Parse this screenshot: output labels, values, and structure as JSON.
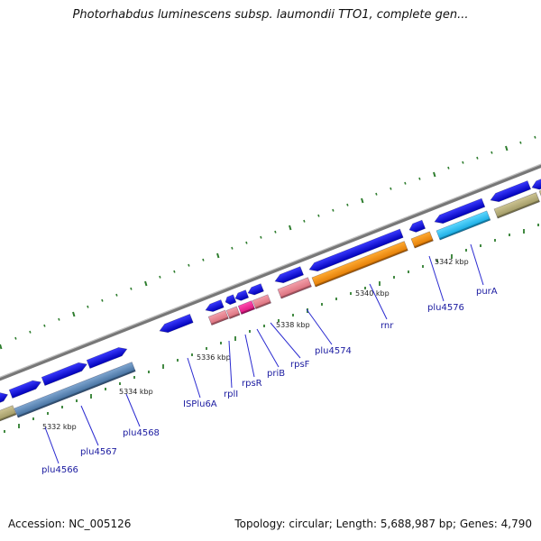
{
  "title": "Photorhabdus luminescens subsp. laumondii TTO1, complete gen...",
  "footer": {
    "accession": "Accession: NC_005126",
    "summary": "Topology: circular; Length: 5,688,987 bp; Genes: 4,790"
  },
  "colors": {
    "backbone": "#8a8a8a",
    "gene_blue": "#1010e6",
    "tick": "#2e7d2e",
    "label": "#1a1aa0",
    "leader": "#2a2ad0"
  },
  "scale_labels": [
    "5332 kbp",
    "5334 kbp",
    "5336 kbp",
    "5338 kbp",
    "5340 kbp",
    "5342 kbp"
  ],
  "gene_labels": [
    "plu4566",
    "plu4567",
    "plu4568",
    "ISPlu6A",
    "rplI",
    "rpsR",
    "priB",
    "rpsF",
    "plu4574",
    "rnr",
    "plu4576",
    "purA"
  ]
}
